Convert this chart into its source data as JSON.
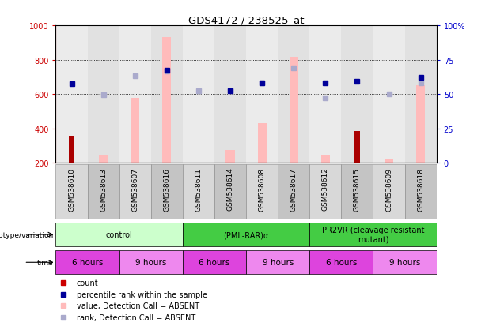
{
  "title": "GDS4172 / 238525_at",
  "samples": [
    "GSM538610",
    "GSM538613",
    "GSM538607",
    "GSM538616",
    "GSM538611",
    "GSM538614",
    "GSM538608",
    "GSM538617",
    "GSM538612",
    "GSM538615",
    "GSM538609",
    "GSM538618"
  ],
  "count_values": [
    355,
    null,
    null,
    null,
    null,
    null,
    null,
    null,
    null,
    385,
    null,
    null
  ],
  "value_absent": [
    null,
    245,
    575,
    930,
    null,
    275,
    430,
    815,
    245,
    null,
    225,
    650
  ],
  "rank_absent": [
    null,
    595,
    705,
    735,
    620,
    620,
    665,
    750,
    578,
    null,
    598,
    665
  ],
  "percentile_rank": [
    660,
    null,
    null,
    740,
    null,
    618,
    665,
    null,
    665,
    672,
    null,
    695
  ],
  "ylim_left": [
    200,
    1000
  ],
  "ylim_right": [
    0,
    100
  ],
  "yticks_left": [
    200,
    400,
    600,
    800,
    1000
  ],
  "yticks_right": [
    0,
    25,
    50,
    75,
    100
  ],
  "grid_vals": [
    400,
    600,
    800
  ],
  "genotype_groups": [
    {
      "label": "control",
      "start": 0,
      "end": 4,
      "color": "#ccffcc"
    },
    {
      "label": "(PML-RAR)α",
      "start": 4,
      "end": 8,
      "color": "#44cc44"
    },
    {
      "label": "PR2VR (cleavage resistant\nmutant)",
      "start": 8,
      "end": 12,
      "color": "#44cc44"
    }
  ],
  "time_groups": [
    {
      "label": "6 hours",
      "start": 0,
      "end": 2,
      "color": "#dd44dd"
    },
    {
      "label": "9 hours",
      "start": 2,
      "end": 4,
      "color": "#ee88ee"
    },
    {
      "label": "6 hours",
      "start": 4,
      "end": 6,
      "color": "#dd44dd"
    },
    {
      "label": "9 hours",
      "start": 6,
      "end": 8,
      "color": "#ee88ee"
    },
    {
      "label": "6 hours",
      "start": 8,
      "end": 10,
      "color": "#dd44dd"
    },
    {
      "label": "9 hours",
      "start": 10,
      "end": 12,
      "color": "#ee88ee"
    }
  ],
  "legend_items": [
    {
      "label": "count",
      "color": "#cc0000"
    },
    {
      "label": "percentile rank within the sample",
      "color": "#000099"
    },
    {
      "label": "value, Detection Call = ABSENT",
      "color": "#ffbbbb"
    },
    {
      "label": "rank, Detection Call = ABSENT",
      "color": "#aaaacc"
    }
  ],
  "bar_width": 0.28,
  "count_color": "#aa0000",
  "value_absent_color": "#ffbbbb",
  "rank_absent_color": "#aaaacc",
  "percentile_color_dark": "#000099",
  "percentile_color_light": "#8888cc",
  "bg_color": "#ffffff",
  "axis_color_left": "#cc0000",
  "axis_color_right": "#0000cc",
  "col_bg_odd": "#d8d8d8",
  "col_bg_even": "#c4c4c4"
}
